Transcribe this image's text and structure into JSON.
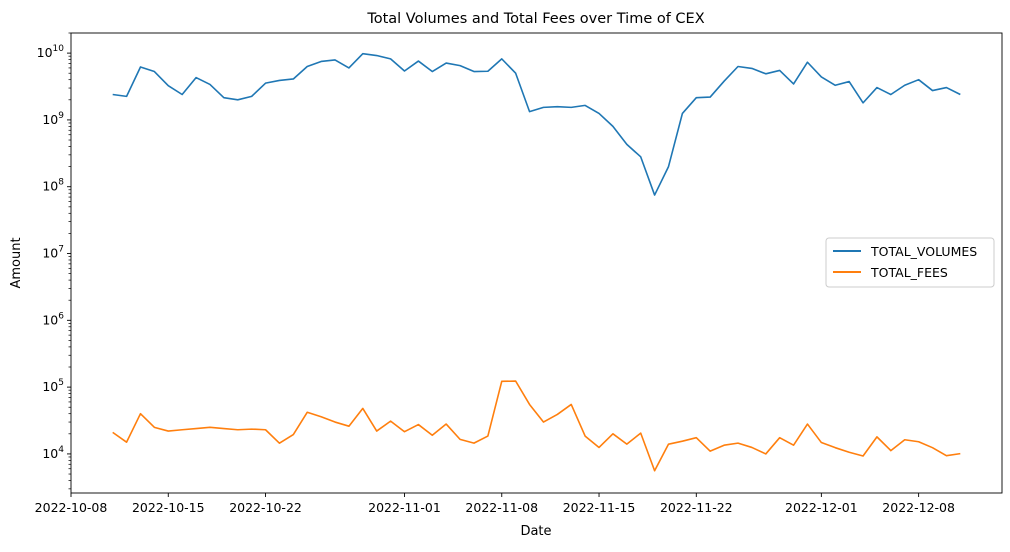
{
  "chart_data": {
    "type": "line",
    "title": "Total Volumes and Total Fees over Time of CEX",
    "xlabel": "Date",
    "ylabel": "Amount",
    "y_scale": "log",
    "ylim": [
      2600,
      20000000000
    ],
    "xlim": [
      "2022-10-08",
      "2022-12-14"
    ],
    "x_ticks": [
      "2022-10-08",
      "2022-10-15",
      "2022-10-22",
      "2022-11-01",
      "2022-11-08",
      "2022-11-15",
      "2022-11-22",
      "2022-12-01",
      "2022-12-08"
    ],
    "y_ticks": [
      {
        "value": 10000,
        "base": "10",
        "exp": "4"
      },
      {
        "value": 100000,
        "base": "10",
        "exp": "5"
      },
      {
        "value": 1000000,
        "base": "10",
        "exp": "6"
      },
      {
        "value": 10000000,
        "base": "10",
        "exp": "7"
      },
      {
        "value": 100000000,
        "base": "10",
        "exp": "8"
      },
      {
        "value": 1000000000,
        "base": "10",
        "exp": "9"
      },
      {
        "value": 10000000000,
        "base": "10",
        "exp": "10"
      }
    ],
    "grid": false,
    "legend_position": "right",
    "x": [
      "2022-10-11",
      "2022-10-12",
      "2022-10-13",
      "2022-10-14",
      "2022-10-15",
      "2022-10-16",
      "2022-10-17",
      "2022-10-18",
      "2022-10-19",
      "2022-10-20",
      "2022-10-21",
      "2022-10-22",
      "2022-10-23",
      "2022-10-24",
      "2022-10-25",
      "2022-10-26",
      "2022-10-27",
      "2022-10-28",
      "2022-10-29",
      "2022-10-30",
      "2022-10-31",
      "2022-11-01",
      "2022-11-02",
      "2022-11-03",
      "2022-11-04",
      "2022-11-05",
      "2022-11-06",
      "2022-11-07",
      "2022-11-08",
      "2022-11-09",
      "2022-11-10",
      "2022-11-11",
      "2022-11-12",
      "2022-11-13",
      "2022-11-14",
      "2022-11-15",
      "2022-11-16",
      "2022-11-17",
      "2022-11-18",
      "2022-11-19",
      "2022-11-20",
      "2022-11-21",
      "2022-11-22",
      "2022-11-23",
      "2022-11-24",
      "2022-11-25",
      "2022-11-26",
      "2022-11-27",
      "2022-11-28",
      "2022-11-29",
      "2022-11-30",
      "2022-12-01",
      "2022-12-02",
      "2022-12-03",
      "2022-12-04",
      "2022-12-05",
      "2022-12-06",
      "2022-12-07",
      "2022-12-08",
      "2022-12-09",
      "2022-12-10",
      "2022-12-11"
    ],
    "series": [
      {
        "name": "TOTAL_VOLUMES",
        "color": "#1f77b4",
        "values": [
          2400000000,
          2250000000,
          6200000000,
          5300000000,
          3250000000,
          2400000000,
          4300000000,
          3400000000,
          2150000000,
          2000000000,
          2250000000,
          3550000000,
          3900000000,
          4100000000,
          6300000000,
          7500000000,
          7900000000,
          6000000000,
          9800000000,
          9200000000,
          8200000000,
          5400000000,
          7600000000,
          5300000000,
          7100000000,
          6500000000,
          5300000000,
          5350000000,
          8200000000,
          5000000000,
          1330000000,
          1540000000,
          1580000000,
          1540000000,
          1650000000,
          1250000000,
          800000000,
          430000000,
          280000000,
          75000000,
          200000000,
          1250000000,
          2150000000,
          2200000000,
          3800000000,
          6300000000,
          5900000000,
          4900000000,
          5500000000,
          3450000000,
          7300000000,
          4400000000,
          3300000000,
          3750000000,
          1800000000,
          3050000000,
          2400000000,
          3300000000,
          4000000000,
          2750000000,
          3050000000,
          2400000000
        ]
      },
      {
        "name": "TOTAL_FEES",
        "color": "#ff7f0e",
        "values": [
          21000,
          15000,
          40000,
          25000,
          22000,
          23000,
          24000,
          25000,
          24000,
          23000,
          23500,
          23000,
          14500,
          19500,
          42000,
          36000,
          30000,
          26000,
          48000,
          22000,
          31000,
          21500,
          27500,
          19000,
          28000,
          16500,
          14500,
          18500,
          122000,
          123000,
          55000,
          30000,
          39000,
          55000,
          18500,
          12500,
          20000,
          14000,
          20500,
          5600,
          14000,
          15500,
          17500,
          11000,
          13500,
          14500,
          12500,
          10000,
          17500,
          13500,
          28000,
          14800,
          12400,
          10600,
          9300,
          18000,
          11200,
          16300,
          15200,
          12400,
          9400,
          10100
        ]
      }
    ]
  }
}
